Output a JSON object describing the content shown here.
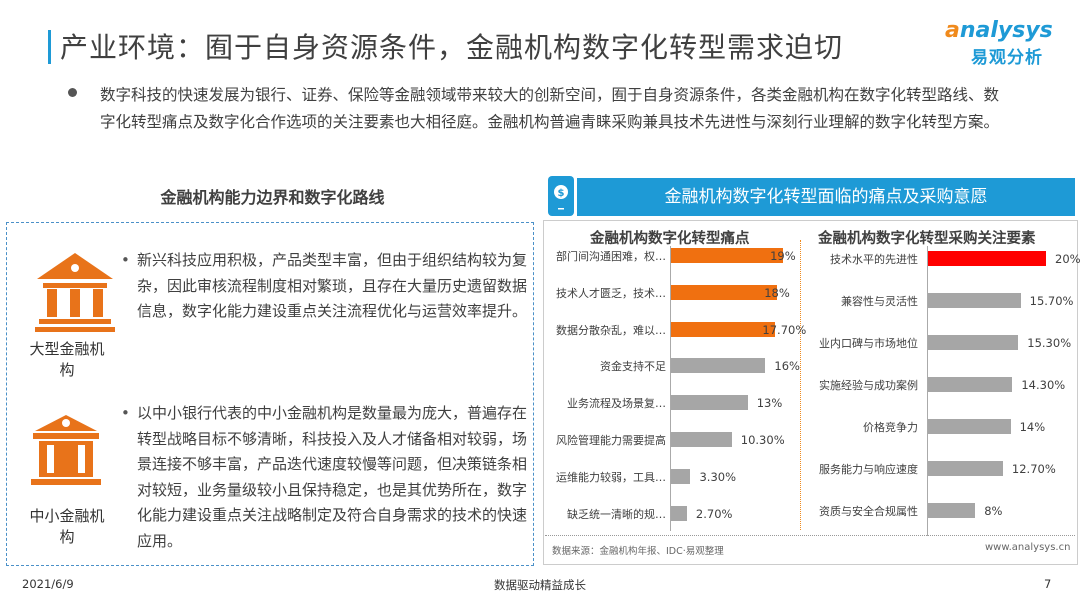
{
  "header": {
    "title": "产业环境：囿于自身资源条件，金融机构数字化转型需求迫切",
    "logo_en": "analysys",
    "logo_cn": "易观分析"
  },
  "intro": "数字科技的快速发展为银行、证券、保险等金融领域带来较大的创新空间，囿于自身资源条件，各类金融机构在数字化转型路线、数字化转型痛点及数字化合作选项的关注要素也大相径庭。金融机构普遍青睐采购兼具技术先进性与深刻行业理解的数字化转型方案。",
  "left": {
    "subtitle": "金融机构能力边界和数字化路线",
    "items": [
      {
        "label": "大型金融机构",
        "icon": "bank-large-icon",
        "text": "新兴科技应用积极，产品类型丰富，但由于组织结构较为复杂，因此审核流程制度相对繁琐，且存在大量历史遗留数据信息，数字化能力建设重点关注流程优化与运营效率提升。"
      },
      {
        "label": "中小金融机构",
        "icon": "bank-small-icon",
        "text": "以中小银行代表的中小金融机构是数量最为庞大，普遍存在转型战略目标不够清晰，科技投入及人才储备相对较弱，场景连接不够丰富，产品迭代速度较慢等问题，但决策链条相对较短，业务量级较小且保持稳定，也是其优势所在，数字化能力建设重点关注战略制定及符合自身需求的技术的快速应用。"
      }
    ]
  },
  "right": {
    "header": "金融机构数字化转型面临的痛点及采购意愿",
    "source": "数据来源：金融机构年报、IDC·易观整理",
    "url": "www.analysys.cn"
  },
  "chart_data": [
    {
      "type": "bar",
      "orientation": "horizontal",
      "title": "金融机构数字化转型痛点",
      "categories": [
        "部门间沟通困难，权…",
        "技术人才匮乏，技术…",
        "数据分散杂乱，难以…",
        "资金支持不足",
        "业务流程及场景复…",
        "风险管理能力需要提高",
        "运维能力较弱，工具…",
        "缺乏统一清晰的规…"
      ],
      "values": [
        19,
        18,
        17.7,
        16,
        13,
        10.3,
        3.3,
        2.7
      ],
      "labels": [
        "19%",
        "18%",
        "17.70%",
        "16%",
        "13%",
        "10.30%",
        "3.30%",
        "2.70%"
      ],
      "colors": [
        "#f07010",
        "#f07010",
        "#f07010",
        "#a6a6a6",
        "#a6a6a6",
        "#a6a6a6",
        "#a6a6a6",
        "#a6a6a6"
      ],
      "xlim": [
        0,
        20
      ],
      "grid": false
    },
    {
      "type": "bar",
      "orientation": "horizontal",
      "title": "金融机构数字化转型采购关注要素",
      "categories": [
        "技术水平的先进性",
        "兼容性与灵活性",
        "业内口碑与市场地位",
        "实施经验与成功案例",
        "价格竞争力",
        "服务能力与响应速度",
        "资质与安全合规属性"
      ],
      "values": [
        20,
        15.7,
        15.3,
        14.3,
        14,
        12.7,
        8
      ],
      "labels": [
        "20%",
        "15.70%",
        "15.30%",
        "14.30%",
        "14%",
        "12.70%",
        "8%"
      ],
      "colors": [
        "#ff0000",
        "#a6a6a6",
        "#a6a6a6",
        "#a6a6a6",
        "#a6a6a6",
        "#a6a6a6",
        "#a6a6a6"
      ],
      "xlim": [
        0,
        20
      ],
      "grid": false
    }
  ],
  "footer": {
    "date": "2021/6/9",
    "slogan": "数据驱动精益成长",
    "page": "7"
  },
  "colors": {
    "accent": "#1e9ad6",
    "orange": "#f07010"
  }
}
